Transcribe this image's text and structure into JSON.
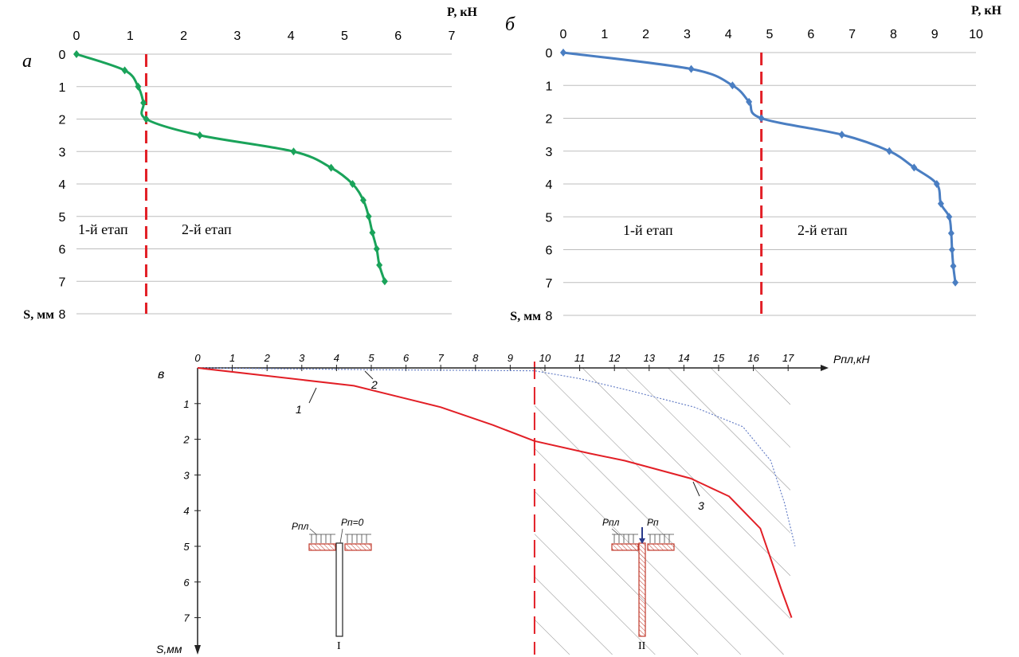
{
  "panels": {
    "a": {
      "letter": "а"
    },
    "b": {
      "letter": "б"
    },
    "c": {
      "letter": "в"
    }
  },
  "chart_data": [
    {
      "id": "a",
      "type": "line",
      "x_axis_title": "P, кН",
      "y_axis_title": "S, мм",
      "xlim": [
        0,
        7
      ],
      "ylim": [
        0,
        8
      ],
      "x_ticks": [
        "0",
        "1",
        "2",
        "3",
        "4",
        "5",
        "6",
        "7"
      ],
      "y_ticks": [
        "0",
        "1",
        "2",
        "3",
        "4",
        "5",
        "6",
        "7",
        "8"
      ],
      "grid": true,
      "line_color": "#1aa35a",
      "divider_color": "#e21f26",
      "divider_x": 1.3,
      "stage_labels": [
        "1-й етап",
        "2-й етап"
      ],
      "series": [
        {
          "points": [
            [
              0,
              0
            ],
            [
              0.9,
              0.5
            ],
            [
              1.15,
              1.0
            ],
            [
              1.25,
              1.5
            ],
            [
              1.3,
              2.0
            ],
            [
              2.3,
              2.5
            ],
            [
              4.05,
              3.0
            ],
            [
              4.75,
              3.5
            ],
            [
              5.15,
              4.0
            ],
            [
              5.35,
              4.5
            ],
            [
              5.45,
              5.0
            ],
            [
              5.52,
              5.5
            ],
            [
              5.6,
              6.0
            ],
            [
              5.65,
              6.5
            ],
            [
              5.75,
              7.0
            ]
          ]
        }
      ]
    },
    {
      "id": "b",
      "type": "line",
      "x_axis_title": "P, кН",
      "y_axis_title": "S, мм",
      "xlim": [
        0,
        10
      ],
      "ylim": [
        0,
        8
      ],
      "x_ticks": [
        "0",
        "1",
        "2",
        "3",
        "4",
        "5",
        "6",
        "7",
        "8",
        "9",
        "10"
      ],
      "y_ticks": [
        "0",
        "1",
        "2",
        "3",
        "4",
        "5",
        "6",
        "7",
        "8"
      ],
      "grid": true,
      "line_color": "#4a7ec2",
      "divider_color": "#e21f26",
      "divider_x": 4.8,
      "stage_labels": [
        "1-й етап",
        "2-й етап"
      ],
      "series": [
        {
          "points": [
            [
              0,
              0
            ],
            [
              3.1,
              0.5
            ],
            [
              4.1,
              1.0
            ],
            [
              4.5,
              1.5
            ],
            [
              4.8,
              2.0
            ],
            [
              6.75,
              2.5
            ],
            [
              7.9,
              3.0
            ],
            [
              8.5,
              3.5
            ],
            [
              9.05,
              4.0
            ],
            [
              9.15,
              4.6
            ],
            [
              9.35,
              5.0
            ],
            [
              9.4,
              5.5
            ],
            [
              9.42,
              6.0
            ],
            [
              9.45,
              6.5
            ],
            [
              9.5,
              7.0
            ]
          ]
        }
      ]
    },
    {
      "id": "c",
      "type": "line",
      "x_axis_title": "Pпл,кН",
      "y_axis_title": "S,мм",
      "xlim": [
        0,
        17.5
      ],
      "ylim": [
        0,
        8
      ],
      "x_ticks": [
        "0",
        "1",
        "2",
        "3",
        "4",
        "5",
        "6",
        "7",
        "8",
        "9",
        "10",
        "11",
        "12",
        "13",
        "14",
        "15",
        "16",
        "17"
      ],
      "y_ticks": [
        "1",
        "2",
        "3",
        "4",
        "5",
        "6",
        "7"
      ],
      "grid": false,
      "hatched_region_from_x": 9.7,
      "divider_color": "#e21f26",
      "series": [
        {
          "name": "1",
          "color": "#e21f26",
          "style": "solid",
          "points": [
            [
              0,
              0
            ],
            [
              4.5,
              0.5
            ],
            [
              7,
              1.1
            ],
            [
              8.5,
              1.6
            ],
            [
              9.7,
              2.05
            ],
            [
              11.3,
              2.4
            ],
            [
              12.3,
              2.6
            ],
            [
              14.2,
              3.1
            ],
            [
              15.3,
              3.6
            ],
            [
              16.2,
              4.5
            ],
            [
              16.8,
              6.2
            ],
            [
              17.1,
              7.0
            ]
          ]
        },
        {
          "name": "2",
          "color": "#6a82c8",
          "style": "dotted",
          "points": [
            [
              0,
              0
            ],
            [
              5,
              0.05
            ],
            [
              9.7,
              0.08
            ],
            [
              11,
              0.3
            ],
            [
              12.5,
              0.65
            ],
            [
              14.3,
              1.1
            ],
            [
              15.7,
              1.65
            ],
            [
              16.5,
              2.6
            ],
            [
              16.9,
              3.8
            ],
            [
              17.2,
              5.0
            ]
          ]
        },
        {
          "name": "3",
          "color": "#e21f26",
          "style": "solid",
          "points": []
        }
      ],
      "curve_labels": [
        "1",
        "2",
        "3"
      ],
      "schemes": [
        {
          "roman": "I",
          "label_plate": "Pпл",
          "label_pile": "Pп=0"
        },
        {
          "roman": "II",
          "label_plate": "Pпл",
          "label_pile": "Pп"
        }
      ]
    }
  ]
}
